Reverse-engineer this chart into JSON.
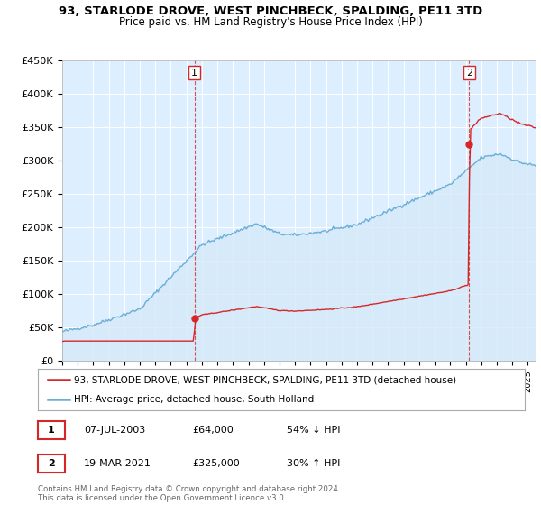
{
  "title": "93, STARLODE DROVE, WEST PINCHBECK, SPALDING, PE11 3TD",
  "subtitle": "Price paid vs. HM Land Registry's House Price Index (HPI)",
  "ylim": [
    0,
    450000
  ],
  "yticks": [
    0,
    50000,
    100000,
    150000,
    200000,
    250000,
    300000,
    350000,
    400000,
    450000
  ],
  "sale1_date_x": 2003.52,
  "sale1_price": 64000,
  "sale2_date_x": 2021.22,
  "sale2_price": 325000,
  "hpi_color": "#6baed6",
  "hpi_fill_color": "#d6e9f8",
  "price_color": "#d62728",
  "vline_color": "#d62728",
  "annotation1_label": "1",
  "annotation2_label": "2",
  "legend_sale": "93, STARLODE DROVE, WEST PINCHBECK, SPALDING, PE11 3TD (detached house)",
  "legend_hpi": "HPI: Average price, detached house, South Holland",
  "table_row1": [
    "1",
    "07-JUL-2003",
    "£64,000",
    "54% ↓ HPI"
  ],
  "table_row2": [
    "2",
    "19-MAR-2021",
    "£325,000",
    "30% ↑ HPI"
  ],
  "footnote": "Contains HM Land Registry data © Crown copyright and database right 2024.\nThis data is licensed under the Open Government Licence v3.0.",
  "xmin": 1995.0,
  "xmax": 2025.5,
  "plot_bg_color": "#ddeeff"
}
